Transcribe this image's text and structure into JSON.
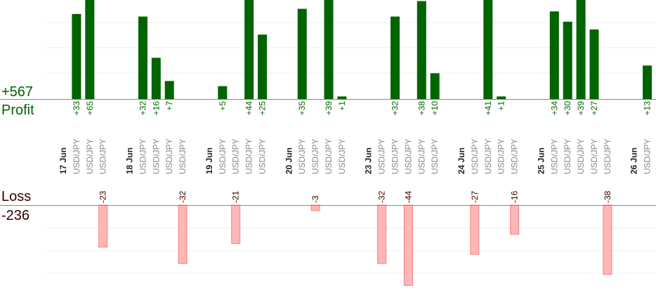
{
  "summary": {
    "profit_total": "+567",
    "profit_label": "Profit",
    "loss_label": "Loss",
    "loss_total": "-236"
  },
  "colors": {
    "profit_bar": "#006400",
    "profit_text": "#006400",
    "loss_bar": "#ffb6b6",
    "loss_bar_edge": "#f08080",
    "loss_text": "#330000",
    "date_text": "#222222",
    "pair_text": "#888888",
    "grid": "#ececec",
    "baseline": "#888888"
  },
  "chart_data": {
    "type": "bar",
    "title": "",
    "slots": [
      {
        "kind": "date",
        "text": "17 Jun"
      },
      {
        "kind": "pair",
        "text": "USD/JPY",
        "profit": 33,
        "profit_label": "+33"
      },
      {
        "kind": "pair",
        "text": "USD/JPY",
        "profit": 65,
        "profit_label": "+65"
      },
      {
        "kind": "pair",
        "text": "USD/JPY",
        "loss": -23,
        "loss_label": "-23"
      },
      {
        "kind": "gap"
      },
      {
        "kind": "date",
        "text": "18 Jun"
      },
      {
        "kind": "pair",
        "text": "USD/JPY",
        "profit": 32,
        "profit_label": "+32"
      },
      {
        "kind": "pair",
        "text": "USD/JPY",
        "profit": 16,
        "profit_label": "+16"
      },
      {
        "kind": "pair",
        "text": "USD/JPY",
        "profit": 7,
        "profit_label": "+7"
      },
      {
        "kind": "pair",
        "text": "USD/JPY",
        "loss": -32,
        "loss_label": "-32"
      },
      {
        "kind": "gap"
      },
      {
        "kind": "date",
        "text": "19 Jun"
      },
      {
        "kind": "pair",
        "text": "USD/JPY",
        "profit": 5,
        "profit_label": "+5"
      },
      {
        "kind": "pair",
        "text": "USD/JPY",
        "loss": -21,
        "loss_label": "-21"
      },
      {
        "kind": "pair",
        "text": "USD/JPY",
        "profit": 44,
        "profit_label": "+44"
      },
      {
        "kind": "pair",
        "text": "USD/JPY",
        "profit": 25,
        "profit_label": "+25"
      },
      {
        "kind": "gap"
      },
      {
        "kind": "date",
        "text": "20 Jun"
      },
      {
        "kind": "pair",
        "text": "USD/JPY",
        "profit": 35,
        "profit_label": "+35"
      },
      {
        "kind": "pair",
        "text": "USD/JPY",
        "loss": -3,
        "loss_label": "-3"
      },
      {
        "kind": "pair",
        "text": "USD/JPY",
        "profit": 39,
        "profit_label": "+39"
      },
      {
        "kind": "pair",
        "text": "USD/JPY",
        "profit": 1,
        "profit_label": "+1"
      },
      {
        "kind": "gap"
      },
      {
        "kind": "date",
        "text": "23 Jun"
      },
      {
        "kind": "pair",
        "text": "USD/JPY",
        "loss": -32,
        "loss_label": "-32"
      },
      {
        "kind": "pair",
        "text": "USD/JPY",
        "profit": 32,
        "profit_label": "+32"
      },
      {
        "kind": "pair",
        "text": "USD/JPY",
        "loss": -44,
        "loss_label": "-44"
      },
      {
        "kind": "pair",
        "text": "USD/JPY",
        "profit": 38,
        "profit_label": "+38"
      },
      {
        "kind": "pair",
        "text": "USD/JPY",
        "profit": 10,
        "profit_label": "+10"
      },
      {
        "kind": "gap"
      },
      {
        "kind": "date",
        "text": "24 Jun"
      },
      {
        "kind": "pair",
        "text": "USD/JPY",
        "loss": -27,
        "loss_label": "-27"
      },
      {
        "kind": "pair",
        "text": "USD/JPY",
        "profit": 41,
        "profit_label": "+41"
      },
      {
        "kind": "pair",
        "text": "USD/JPY",
        "profit": 1,
        "profit_label": "+1"
      },
      {
        "kind": "pair",
        "text": "USD/JPY",
        "loss": -16,
        "loss_label": "-16"
      },
      {
        "kind": "gap"
      },
      {
        "kind": "date",
        "text": "25 Jun"
      },
      {
        "kind": "pair",
        "text": "USD/JPY",
        "profit": 34,
        "profit_label": "+34"
      },
      {
        "kind": "pair",
        "text": "USD/JPY",
        "profit": 30,
        "profit_label": "+30"
      },
      {
        "kind": "pair",
        "text": "USD/JPY",
        "profit": 39,
        "profit_label": "+39"
      },
      {
        "kind": "pair",
        "text": "USD/JPY",
        "profit": 27,
        "profit_label": "+27"
      },
      {
        "kind": "pair",
        "text": "USD/JPY",
        "loss": -38,
        "loss_label": "-38"
      },
      {
        "kind": "gap"
      },
      {
        "kind": "date",
        "text": "26 Jun"
      },
      {
        "kind": "pair",
        "text": "USD/JPY",
        "profit": 13,
        "profit_label": "+13"
      }
    ],
    "profit_ylim": [
      0,
      37
    ],
    "loss_ylim": [
      -44,
      0
    ],
    "grid": true
  }
}
